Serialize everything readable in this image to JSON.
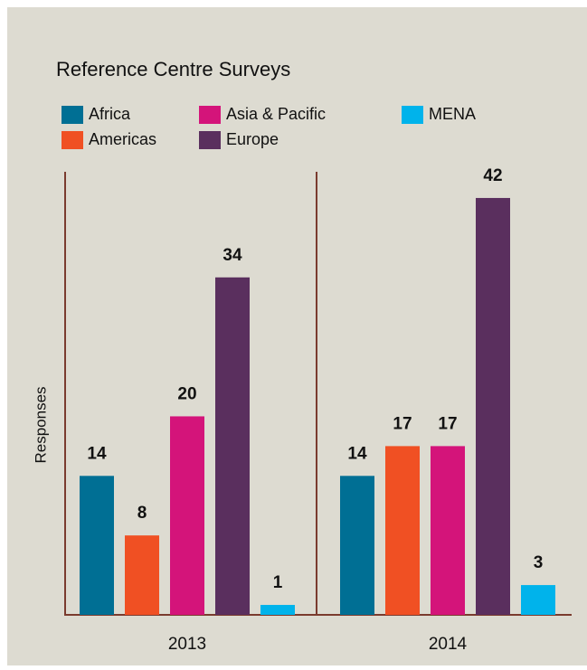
{
  "chart_data": {
    "type": "bar",
    "title": "Reference Centre Surveys",
    "y_label": "Responses",
    "categories": [
      "2013",
      "2014"
    ],
    "series": [
      {
        "name": "Africa",
        "color": "#006f94",
        "values": [
          14,
          14
        ]
      },
      {
        "name": "Americas",
        "color": "#f05023",
        "values": [
          8,
          17
        ]
      },
      {
        "name": "Asia & Pacific",
        "color": "#d4147a",
        "values": [
          20,
          17
        ]
      },
      {
        "name": "Europe",
        "color": "#5a2f5e",
        "values": [
          34,
          42
        ]
      },
      {
        "name": "MENA",
        "color": "#00b3eb",
        "values": [
          1,
          3
        ]
      }
    ],
    "ylim": [
      0,
      44
    ]
  }
}
